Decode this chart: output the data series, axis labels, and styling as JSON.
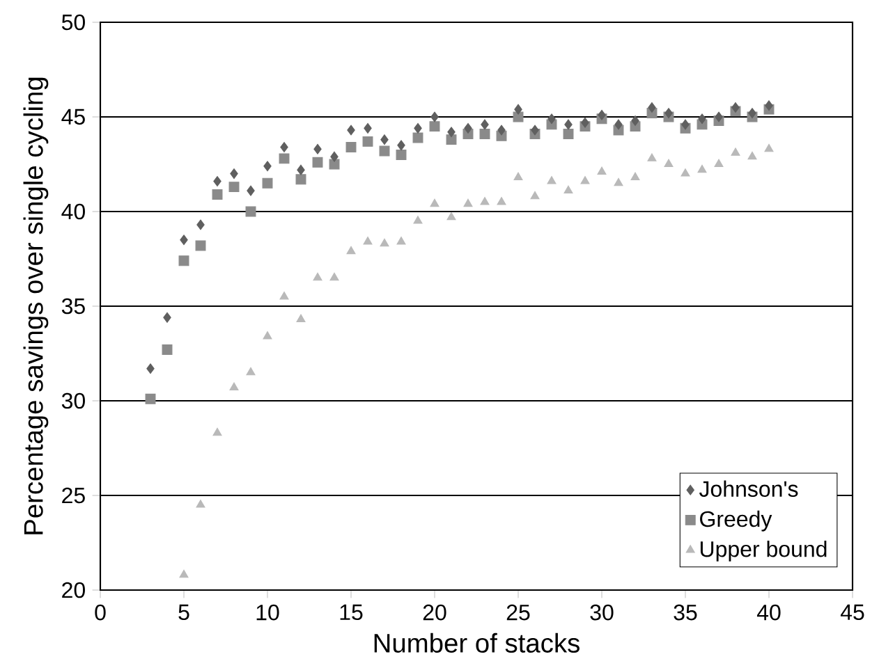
{
  "chart_data": {
    "type": "scatter",
    "xlabel": "Number of stacks",
    "ylabel": "Percentage savings over single cycling",
    "x": [
      3,
      4,
      5,
      6,
      7,
      8,
      9,
      10,
      11,
      12,
      13,
      14,
      15,
      16,
      17,
      18,
      19,
      20,
      21,
      22,
      23,
      24,
      25,
      26,
      27,
      28,
      29,
      30,
      31,
      32,
      33,
      34,
      35,
      36,
      37,
      38,
      39,
      40
    ],
    "series": [
      {
        "name": "Johnson's",
        "color": "#5f5f5f",
        "marker": "diamond",
        "values": [
          31.7,
          34.4,
          38.5,
          39.3,
          41.6,
          42.0,
          41.1,
          42.4,
          43.4,
          42.2,
          43.3,
          42.9,
          44.3,
          44.4,
          43.8,
          43.5,
          44.4,
          45.0,
          44.2,
          44.4,
          44.6,
          44.3,
          45.4,
          44.3,
          44.9,
          44.6,
          44.7,
          45.1,
          44.6,
          44.8,
          45.5,
          45.2,
          44.6,
          44.9,
          45.0,
          45.5,
          45.2,
          45.6
        ]
      },
      {
        "name": "Greedy",
        "color": "#8a8a8a",
        "marker": "square",
        "values": [
          30.1,
          32.7,
          37.4,
          38.2,
          40.9,
          41.3,
          40.0,
          41.5,
          42.8,
          41.7,
          42.6,
          42.5,
          43.4,
          43.7,
          43.2,
          43.0,
          43.9,
          44.5,
          43.8,
          44.1,
          44.1,
          44.0,
          45.0,
          44.1,
          44.6,
          44.1,
          44.5,
          44.9,
          44.3,
          44.5,
          45.2,
          45.0,
          44.4,
          44.6,
          44.8,
          45.3,
          45.0,
          45.4
        ]
      },
      {
        "name": "Upper bound",
        "color": "#b9b9b9",
        "marker": "triangle",
        "values": [
          null,
          null,
          20.8,
          24.5,
          28.3,
          30.7,
          31.5,
          33.4,
          35.5,
          34.3,
          36.5,
          36.5,
          37.9,
          38.4,
          38.3,
          38.4,
          39.5,
          40.4,
          39.7,
          40.4,
          40.5,
          40.5,
          41.8,
          40.8,
          41.6,
          41.1,
          41.6,
          42.1,
          41.5,
          41.8,
          42.8,
          42.5,
          42.0,
          42.2,
          42.5,
          43.1,
          42.9,
          43.3
        ]
      }
    ],
    "xlim": [
      0,
      45
    ],
    "ylim": [
      20,
      50
    ],
    "xticks": [
      0,
      5,
      10,
      15,
      20,
      25,
      30,
      35,
      40,
      45
    ],
    "yticks": [
      20,
      25,
      30,
      35,
      40,
      45,
      50
    ],
    "grid": "y",
    "legend": "bottom right"
  }
}
